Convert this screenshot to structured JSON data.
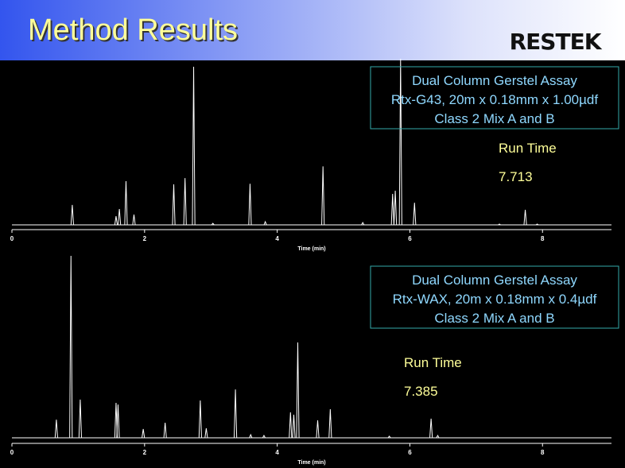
{
  "header": {
    "title": "Method Results",
    "logo": "RESTEK"
  },
  "chart_data": [
    {
      "type": "peaks",
      "xlabel": "Time (min)",
      "xlim": [
        0,
        9.04
      ],
      "xticks": [
        0,
        2,
        4,
        6,
        8
      ],
      "ylim": [
        0,
        100
      ],
      "color": "#ffffff",
      "x": [
        0.91,
        1.57,
        1.62,
        1.72,
        1.84,
        2.44,
        2.61,
        2.74,
        3.03,
        3.59,
        3.82,
        4.69,
        5.29,
        5.74,
        5.78,
        5.86,
        6.07,
        7.35,
        7.74,
        7.92
      ],
      "y": [
        12.6,
        5.5,
        10,
        27.6,
        6.5,
        25.6,
        29.6,
        100,
        1,
        26,
        2,
        37,
        1.5,
        19.6,
        21.6,
        105,
        14,
        0.5,
        9.5,
        0.5
      ],
      "annotation": [
        "Dual Column Gerstel Assay",
        "Rtx-G43, 20m x 0.18mm x 1.00µdf",
        "Class 2 Mix A and  B"
      ],
      "run_time_label": "Run Time",
      "run_time": 7.713
    },
    {
      "type": "peaks",
      "xlabel": "Time (min)",
      "xlim": [
        0,
        9.04
      ],
      "xticks": [
        0,
        2,
        4,
        6,
        8
      ],
      "ylim": [
        0,
        100
      ],
      "color": "#ffffff",
      "x": [
        0.67,
        0.89,
        1.03,
        1.57,
        1.6,
        1.98,
        2.31,
        2.84,
        2.93,
        3.37,
        3.6,
        3.8,
        4.2,
        4.25,
        4.31,
        4.61,
        4.8,
        5.69,
        6.32,
        6.42
      ],
      "y": [
        10,
        100,
        21,
        19.2,
        18.3,
        4.8,
        8.3,
        20.5,
        5.2,
        26.6,
        1.7,
        1.3,
        14,
        12.7,
        52.4,
        9.6,
        15.7,
        0.9,
        10.5,
        1.3
      ],
      "annotation": [
        "Dual Column Gerstel Assay",
        "Rtx-WAX, 20m x 0.18mm x 0.4µdf",
        "Class 2 Mix A and  B"
      ],
      "run_time_label": "Run Time",
      "run_time": 7.385
    }
  ]
}
